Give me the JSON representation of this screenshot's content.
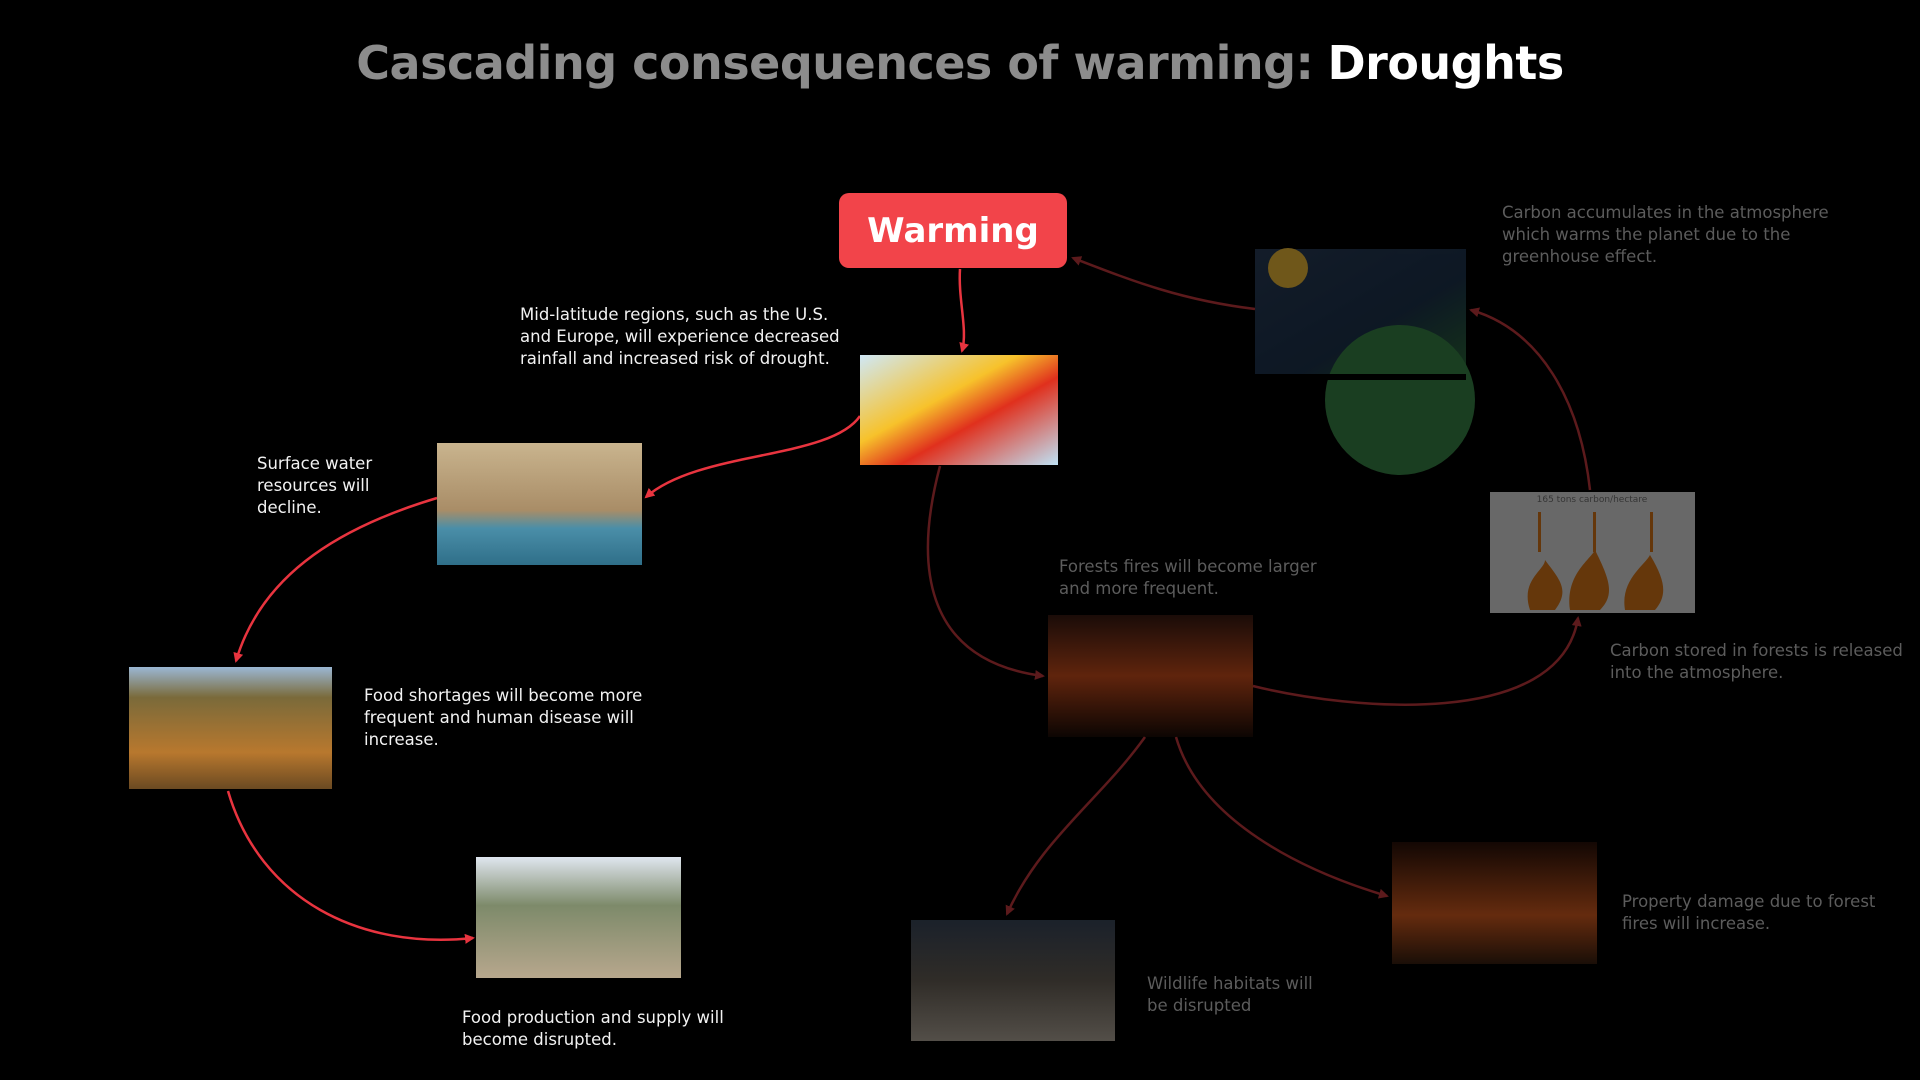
{
  "title": {
    "lead": "Cascading consequences of warming:",
    "emphasis": "Droughts"
  },
  "root": {
    "label": "Warming"
  },
  "captions": [
    {
      "lines": [
        "Mid-latitude regions, such as the U.S.",
        "and Europe, will experience decreased",
        "rainfall and increased risk of drought."
      ]
    },
    {
      "lines": [
        "Surface water",
        "resources will",
        "decline."
      ]
    },
    {
      "lines": [
        "Food shortages will become more",
        "frequent  and human disease will",
        "increase."
      ]
    },
    {
      "lines": [
        "Food production and supply will",
        "become disrupted."
      ]
    },
    {
      "lines": [
        "Forests fires will become larger",
        "and more frequent."
      ]
    },
    {
      "lines": [
        "Carbon stored in forests is released",
        "into the atmosphere."
      ]
    },
    {
      "lines": [
        "Carbon accumulates in the atmosphere",
        "which warms the planet due to the",
        "greenhouse effect."
      ]
    },
    {
      "lines": [
        "Property damage due to forest",
        "fires will increase."
      ]
    },
    {
      "lines": [
        "Wildlife habitats will",
        "be disrupted"
      ]
    }
  ],
  "image_text": {
    "carbon": "165 tons carbon/hectare"
  }
}
